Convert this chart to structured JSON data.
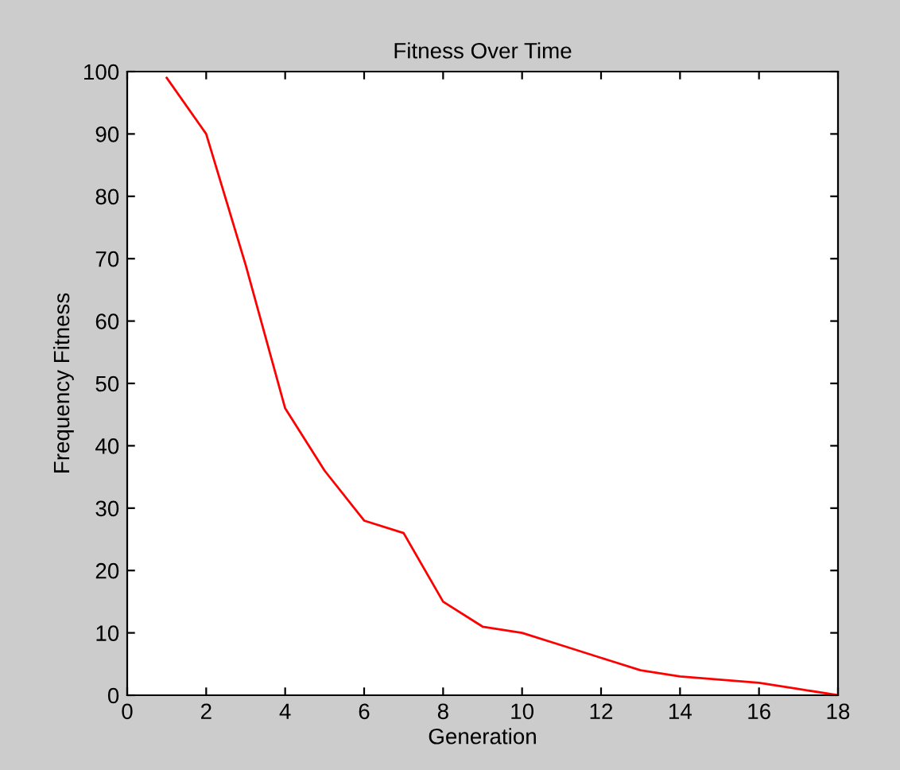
{
  "chart_data": {
    "type": "line",
    "title": "Fitness Over Time",
    "xlabel": "Generation",
    "ylabel": "Frequency Fitness",
    "x": [
      1,
      2,
      3,
      4,
      5,
      6,
      7,
      8,
      9,
      10,
      11,
      12,
      13,
      14,
      15,
      16,
      17,
      18
    ],
    "series": [
      {
        "color": "#ff0000",
        "values": [
          99,
          90,
          69,
          46,
          36,
          28,
          26,
          15,
          11,
          10,
          8,
          6,
          4,
          3,
          2.5,
          2,
          1,
          0
        ]
      }
    ],
    "xlim": [
      0,
      18
    ],
    "xticks": [
      0,
      2,
      4,
      6,
      8,
      10,
      12,
      14,
      16,
      18
    ],
    "ylim": [
      0,
      100
    ],
    "yticks": [
      0,
      10,
      20,
      30,
      40,
      50,
      60,
      70,
      80,
      90,
      100
    ],
    "grid": false,
    "marker": "none",
    "line_style": "solid"
  }
}
